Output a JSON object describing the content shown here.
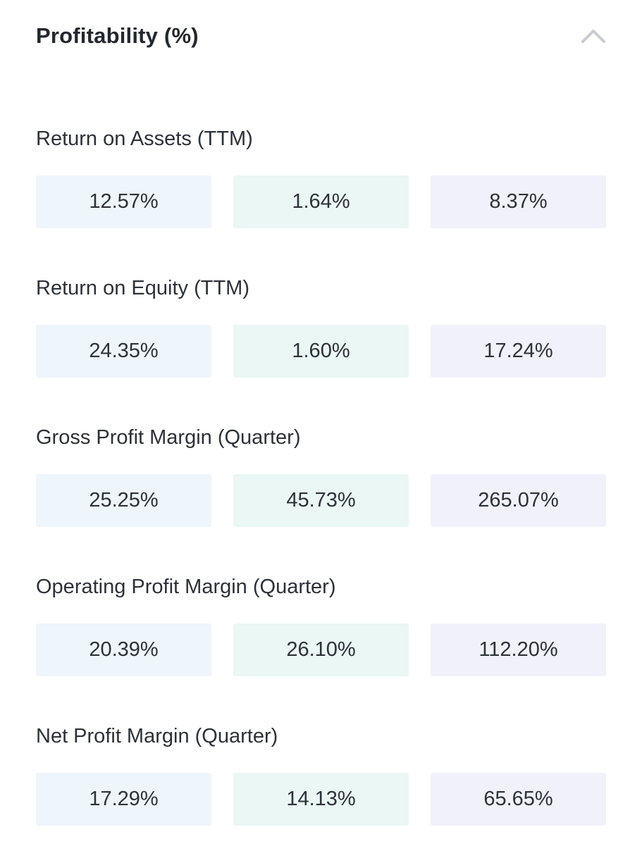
{
  "section": {
    "title": "Profitability (%)",
    "collapse_icon": "chevron-up-icon"
  },
  "colors": {
    "column_backgrounds": [
      "#eef5fb",
      "#eaf7f4",
      "#f0f1fb"
    ],
    "chevron": "#c8cbd0"
  },
  "metrics": [
    {
      "label": "Return on Assets (TTM)",
      "values": [
        "12.57%",
        "1.64%",
        "8.37%"
      ]
    },
    {
      "label": "Return on Equity (TTM)",
      "values": [
        "24.35%",
        "1.60%",
        "17.24%"
      ]
    },
    {
      "label": "Gross Profit Margin (Quarter)",
      "values": [
        "25.25%",
        "45.73%",
        "265.07%"
      ]
    },
    {
      "label": "Operating Profit Margin (Quarter)",
      "values": [
        "20.39%",
        "26.10%",
        "112.20%"
      ]
    },
    {
      "label": "Net Profit Margin (Quarter)",
      "values": [
        "17.29%",
        "14.13%",
        "65.65%"
      ]
    }
  ]
}
